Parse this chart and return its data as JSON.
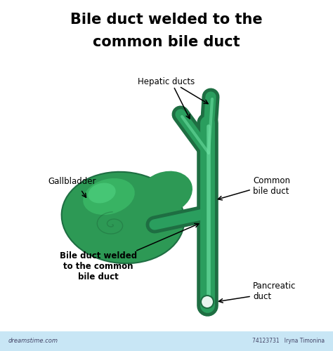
{
  "title_line1": "Bile duct welded to the",
  "title_line2": "common bile duct",
  "title_fontsize": 15,
  "title_fontweight": "bold",
  "bg_color": "#ffffff",
  "green_outer": "#1e6e42",
  "green_mid": "#2a9e5e",
  "green_light": "#4dc87a",
  "green_highlight": "#6adea0",
  "green_gb_base": "#2d9955",
  "green_gb_light": "#3dbf6a",
  "green_gb_bright": "#55d988",
  "labels": {
    "hepatic_ducts": "Hepatic ducts",
    "common_bile_duct": "Common\nbile duct",
    "gallbladder": "Gallbladder",
    "welded": "Bile duct welded\nto the common\nbile duct",
    "pancreatic": "Pancreatic\nduct"
  },
  "watermark_id": "74123731",
  "watermark_author": "Iryna Timonina",
  "dreamstime": "dreamstime.com"
}
